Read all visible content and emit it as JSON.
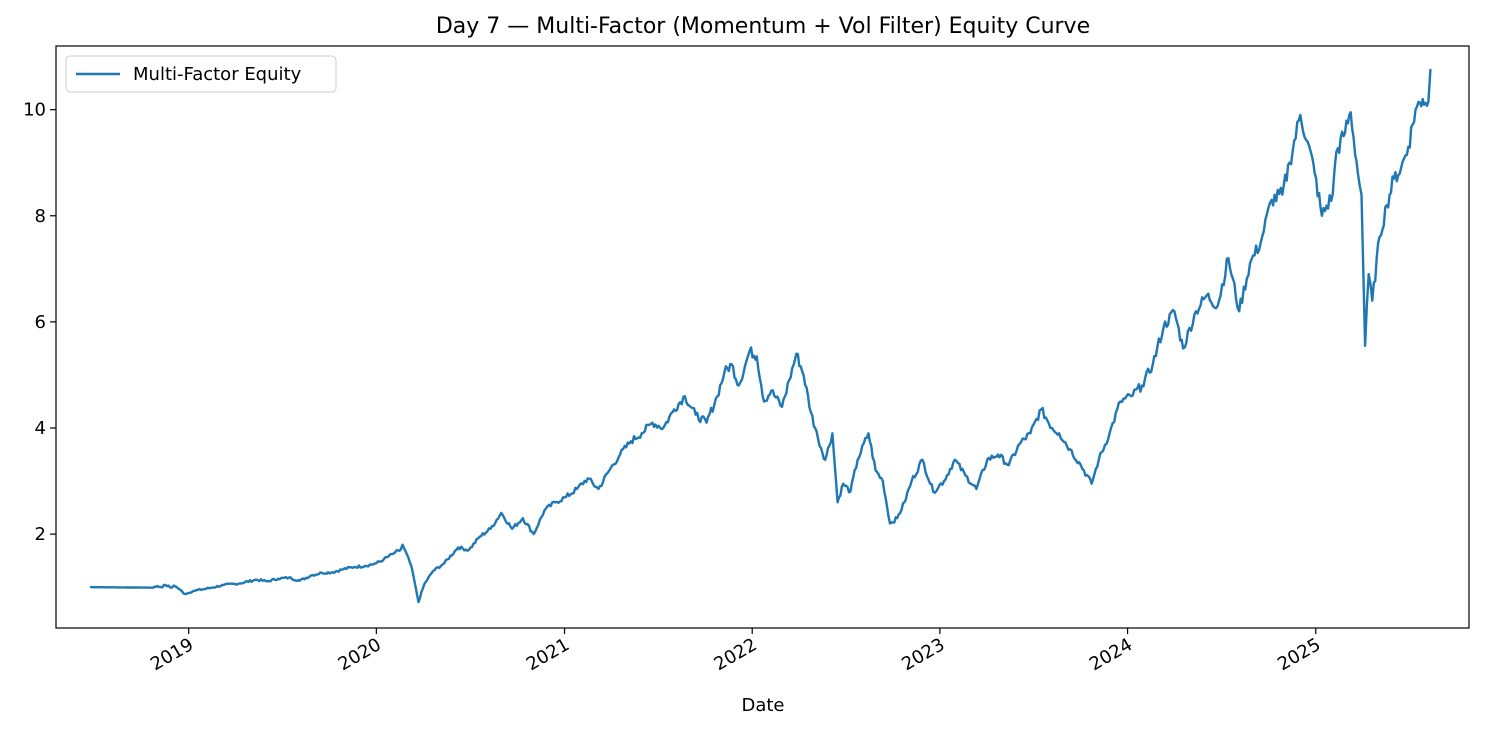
{
  "chart_data": {
    "type": "line",
    "title": "Day 7 — Multi-Factor (Momentum + Vol Filter) Equity Curve",
    "xlabel": "Date",
    "ylabel": "",
    "x_tick_labels": [
      "2019",
      "2020",
      "2021",
      "2022",
      "2023",
      "2024",
      "2025"
    ],
    "y_tick_labels": [
      "2",
      "4",
      "6",
      "8",
      "10"
    ],
    "y_ticks": [
      2,
      4,
      6,
      8,
      10
    ],
    "xlim": [
      "2018-04-18",
      "2025-10-26"
    ],
    "ylim": [
      0.23,
      11.2
    ],
    "grid": false,
    "legend": {
      "position": "upper left",
      "entries": [
        "Multi-Factor Equity"
      ]
    },
    "series": [
      {
        "name": "Multi-Factor Equity",
        "color": "#1f77b4",
        "points": [
          [
            "2018-06-25",
            1.0
          ],
          [
            "2018-10-24",
            0.99
          ],
          [
            "2018-11-01",
            1.02
          ],
          [
            "2018-11-08",
            1.0
          ],
          [
            "2018-11-17",
            1.04
          ],
          [
            "2018-11-28",
            0.99
          ],
          [
            "2018-12-03",
            1.03
          ],
          [
            "2018-12-10",
            0.99
          ],
          [
            "2018-12-25",
            0.87
          ],
          [
            "2019-01-10",
            0.93
          ],
          [
            "2019-02-10",
            0.98
          ],
          [
            "2019-03-10",
            1.04
          ],
          [
            "2019-04-10",
            1.07
          ],
          [
            "2019-05-12",
            1.14
          ],
          [
            "2019-06-03",
            1.11
          ],
          [
            "2019-06-24",
            1.16
          ],
          [
            "2019-07-15",
            1.18
          ],
          [
            "2019-08-05",
            1.12
          ],
          [
            "2019-08-27",
            1.22
          ],
          [
            "2019-09-17",
            1.27
          ],
          [
            "2019-10-08",
            1.28
          ],
          [
            "2019-10-29",
            1.34
          ],
          [
            "2019-11-19",
            1.38
          ],
          [
            "2019-12-10",
            1.4
          ],
          [
            "2020-01-01",
            1.45
          ],
          [
            "2020-01-15",
            1.52
          ],
          [
            "2020-02-06",
            1.65
          ],
          [
            "2020-02-17",
            1.7
          ],
          [
            "2020-02-21",
            1.8
          ],
          [
            "2020-03-09",
            1.4
          ],
          [
            "2020-03-23",
            0.72
          ],
          [
            "2020-04-03",
            1.05
          ],
          [
            "2020-04-20",
            1.3
          ],
          [
            "2020-05-12",
            1.45
          ],
          [
            "2020-06-08",
            1.75
          ],
          [
            "2020-06-29",
            1.7
          ],
          [
            "2020-07-20",
            1.95
          ],
          [
            "2020-08-10",
            2.1
          ],
          [
            "2020-08-31",
            2.4
          ],
          [
            "2020-09-21",
            2.1
          ],
          [
            "2020-10-12",
            2.3
          ],
          [
            "2020-11-02",
            2.0
          ],
          [
            "2020-11-23",
            2.45
          ],
          [
            "2020-12-14",
            2.6
          ],
          [
            "2021-01-04",
            2.7
          ],
          [
            "2021-01-25",
            2.85
          ],
          [
            "2021-02-15",
            3.05
          ],
          [
            "2021-03-08",
            2.85
          ],
          [
            "2021-03-29",
            3.2
          ],
          [
            "2021-04-19",
            3.5
          ],
          [
            "2021-05-10",
            3.75
          ],
          [
            "2021-05-31",
            3.9
          ],
          [
            "2021-06-21",
            4.1
          ],
          [
            "2021-07-12",
            4.0
          ],
          [
            "2021-08-02",
            4.35
          ],
          [
            "2021-08-23",
            4.6
          ],
          [
            "2021-09-13",
            4.25
          ],
          [
            "2021-10-04",
            4.1
          ],
          [
            "2021-10-25",
            4.6
          ],
          [
            "2021-11-08",
            5.05
          ],
          [
            "2021-11-22",
            5.2
          ],
          [
            "2021-12-06",
            4.8
          ],
          [
            "2021-12-27",
            5.45
          ],
          [
            "2022-01-10",
            5.35
          ],
          [
            "2022-01-24",
            4.5
          ],
          [
            "2022-02-07",
            4.7
          ],
          [
            "2022-02-28",
            4.4
          ],
          [
            "2022-03-14",
            4.9
          ],
          [
            "2022-03-28",
            5.4
          ],
          [
            "2022-04-11",
            5.0
          ],
          [
            "2022-04-25",
            4.3
          ],
          [
            "2022-05-09",
            3.8
          ],
          [
            "2022-05-23",
            3.4
          ],
          [
            "2022-06-06",
            3.9
          ],
          [
            "2022-06-16",
            2.6
          ],
          [
            "2022-06-27",
            2.95
          ],
          [
            "2022-07-11",
            2.8
          ],
          [
            "2022-07-25",
            3.4
          ],
          [
            "2022-08-15",
            3.9
          ],
          [
            "2022-08-29",
            3.2
          ],
          [
            "2022-09-12",
            3.0
          ],
          [
            "2022-09-26",
            2.2
          ],
          [
            "2022-10-10",
            2.3
          ],
          [
            "2022-10-24",
            2.6
          ],
          [
            "2022-11-07",
            3.0
          ],
          [
            "2022-11-28",
            3.4
          ],
          [
            "2022-12-19",
            2.8
          ],
          [
            "2023-01-09",
            3.0
          ],
          [
            "2023-01-30",
            3.4
          ],
          [
            "2023-02-20",
            3.1
          ],
          [
            "2023-03-13",
            2.85
          ],
          [
            "2023-04-03",
            3.4
          ],
          [
            "2023-04-24",
            3.5
          ],
          [
            "2023-05-15",
            3.3
          ],
          [
            "2023-06-05",
            3.7
          ],
          [
            "2023-06-26",
            3.9
          ],
          [
            "2023-07-17",
            4.35
          ],
          [
            "2023-08-07",
            4.0
          ],
          [
            "2023-08-21",
            3.9
          ],
          [
            "2023-09-11",
            3.6
          ],
          [
            "2023-10-02",
            3.3
          ],
          [
            "2023-10-23",
            2.95
          ],
          [
            "2023-11-06",
            3.4
          ],
          [
            "2023-11-27",
            3.9
          ],
          [
            "2023-12-18",
            4.5
          ],
          [
            "2024-01-08",
            4.6
          ],
          [
            "2024-01-29",
            4.8
          ],
          [
            "2024-02-19",
            5.2
          ],
          [
            "2024-03-11",
            5.9
          ],
          [
            "2024-04-01",
            6.2
          ],
          [
            "2024-04-18",
            5.5
          ],
          [
            "2024-05-13",
            6.2
          ],
          [
            "2024-06-03",
            6.5
          ],
          [
            "2024-06-24",
            6.3
          ],
          [
            "2024-07-15",
            7.2
          ],
          [
            "2024-08-05",
            6.2
          ],
          [
            "2024-08-26",
            7.1
          ],
          [
            "2024-09-16",
            7.5
          ],
          [
            "2024-10-07",
            8.3
          ],
          [
            "2024-10-28",
            8.4
          ],
          [
            "2024-11-11",
            9.0
          ],
          [
            "2024-12-02",
            9.9
          ],
          [
            "2024-12-16",
            9.4
          ],
          [
            "2024-12-30",
            8.8
          ],
          [
            "2025-01-13",
            8.0
          ],
          [
            "2025-02-03",
            8.4
          ],
          [
            "2025-02-10",
            9.2
          ],
          [
            "2025-02-24",
            9.5
          ],
          [
            "2025-03-10",
            9.95
          ],
          [
            "2025-03-24",
            8.8
          ],
          [
            "2025-03-31",
            8.4
          ],
          [
            "2025-04-07",
            5.55
          ],
          [
            "2025-04-14",
            6.9
          ],
          [
            "2025-04-21",
            6.4
          ],
          [
            "2025-05-05",
            7.6
          ],
          [
            "2025-05-19",
            8.2
          ],
          [
            "2025-06-02",
            8.7
          ],
          [
            "2025-06-16",
            8.9
          ],
          [
            "2025-06-30",
            9.3
          ],
          [
            "2025-07-14",
            10.0
          ],
          [
            "2025-07-28",
            10.2
          ],
          [
            "2025-08-08",
            10.15
          ],
          [
            "2025-08-12",
            10.75
          ]
        ]
      }
    ]
  }
}
